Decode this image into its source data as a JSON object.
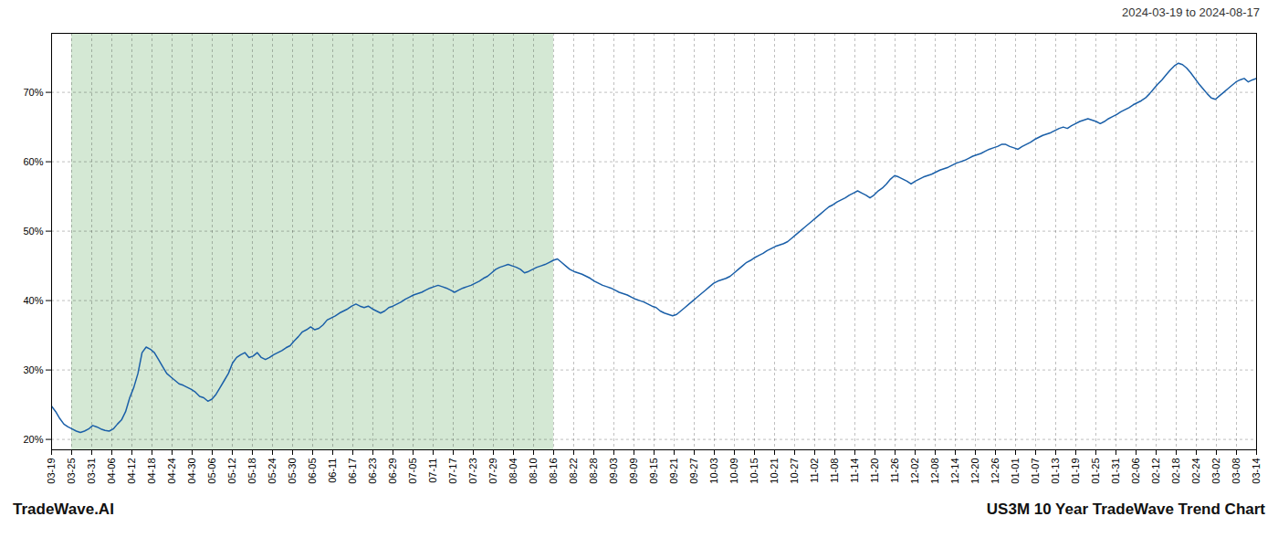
{
  "chart_data": {
    "type": "line",
    "title": "US3M 10 Year TradeWave Trend Chart",
    "subtitle": "2024-03-19 to 2024-08-17",
    "annotations": [
      "TradeWave.AI"
    ],
    "color": "#1a5fa8",
    "grid": true,
    "xlim": [
      0,
      293
    ],
    "xticks": [
      {
        "value": 0,
        "label": "03-19"
      },
      {
        "value": 4.8833,
        "label": "03-25"
      },
      {
        "value": 9.7667,
        "label": "03-31"
      },
      {
        "value": 14.65,
        "label": "04-06"
      },
      {
        "value": 19.5333,
        "label": "04-12"
      },
      {
        "value": 24.4167,
        "label": "04-18"
      },
      {
        "value": 29.3,
        "label": "04-24"
      },
      {
        "value": 34.1833,
        "label": "04-30"
      },
      {
        "value": 39.0667,
        "label": "05-06"
      },
      {
        "value": 43.95,
        "label": "05-12"
      },
      {
        "value": 48.8333,
        "label": "05-18"
      },
      {
        "value": 53.7167,
        "label": "05-24"
      },
      {
        "value": 58.6,
        "label": "05-30"
      },
      {
        "value": 63.4833,
        "label": "06-05"
      },
      {
        "value": 68.3667,
        "label": "06-11"
      },
      {
        "value": 73.25,
        "label": "06-17"
      },
      {
        "value": 78.1333,
        "label": "06-23"
      },
      {
        "value": 83.0167,
        "label": "06-29"
      },
      {
        "value": 87.9,
        "label": "07-05"
      },
      {
        "value": 92.7833,
        "label": "07-11"
      },
      {
        "value": 97.6667,
        "label": "07-17"
      },
      {
        "value": 102.55,
        "label": "07-23"
      },
      {
        "value": 107.4333,
        "label": "07-29"
      },
      {
        "value": 112.3167,
        "label": "08-04"
      },
      {
        "value": 117.2,
        "label": "08-10"
      },
      {
        "value": 122.0833,
        "label": "08-16"
      },
      {
        "value": 126.9667,
        "label": "08-22"
      },
      {
        "value": 131.85,
        "label": "08-28"
      },
      {
        "value": 136.7333,
        "label": "09-03"
      },
      {
        "value": 141.6167,
        "label": "09-09"
      },
      {
        "value": 146.5,
        "label": "09-15"
      },
      {
        "value": 151.3833,
        "label": "09-21"
      },
      {
        "value": 156.2667,
        "label": "09-27"
      },
      {
        "value": 161.15,
        "label": "10-03"
      },
      {
        "value": 166.0333,
        "label": "10-09"
      },
      {
        "value": 170.9167,
        "label": "10-15"
      },
      {
        "value": 175.8,
        "label": "10-21"
      },
      {
        "value": 180.6833,
        "label": "10-27"
      },
      {
        "value": 185.5667,
        "label": "11-02"
      },
      {
        "value": 190.45,
        "label": "11-08"
      },
      {
        "value": 195.3333,
        "label": "11-14"
      },
      {
        "value": 200.2167,
        "label": "11-20"
      },
      {
        "value": 205.1,
        "label": "11-26"
      },
      {
        "value": 209.9833,
        "label": "12-02"
      },
      {
        "value": 214.8667,
        "label": "12-08"
      },
      {
        "value": 219.75,
        "label": "12-14"
      },
      {
        "value": 224.6333,
        "label": "12-20"
      },
      {
        "value": 229.5167,
        "label": "12-26"
      },
      {
        "value": 234.4,
        "label": "01-01"
      },
      {
        "value": 239.2833,
        "label": "01-07"
      },
      {
        "value": 244.1667,
        "label": "01-13"
      },
      {
        "value": 249.05,
        "label": "01-19"
      },
      {
        "value": 253.9333,
        "label": "01-25"
      },
      {
        "value": 258.8167,
        "label": "01-31"
      },
      {
        "value": 263.7,
        "label": "02-06"
      },
      {
        "value": 268.5833,
        "label": "02-12"
      },
      {
        "value": 273.4667,
        "label": "02-18"
      },
      {
        "value": 278.35,
        "label": "02-24"
      },
      {
        "value": 283.2333,
        "label": "03-02"
      },
      {
        "value": 288.1167,
        "label": "03-08"
      },
      {
        "value": 293,
        "label": "03-14"
      }
    ],
    "ylim": [
      0.185,
      0.785
    ],
    "yticks": [
      {
        "value": 0.2,
        "label": "20%"
      },
      {
        "value": 0.3,
        "label": "30%"
      },
      {
        "value": 0.4,
        "label": "40%"
      },
      {
        "value": 0.5,
        "label": "50%"
      },
      {
        "value": 0.6,
        "label": "60%"
      },
      {
        "value": 0.7,
        "label": "70%"
      }
    ],
    "shaded_span": {
      "from": "03-25",
      "to": "08-16",
      "color": "#d4e8d4"
    },
    "values": [
      0.248,
      0.24,
      0.23,
      0.222,
      0.218,
      0.215,
      0.212,
      0.21,
      0.212,
      0.215,
      0.22,
      0.218,
      0.215,
      0.213,
      0.212,
      0.215,
      0.222,
      0.228,
      0.24,
      0.26,
      0.275,
      0.295,
      0.325,
      0.333,
      0.33,
      0.325,
      0.315,
      0.305,
      0.295,
      0.29,
      0.285,
      0.28,
      0.278,
      0.275,
      0.272,
      0.268,
      0.262,
      0.26,
      0.255,
      0.258,
      0.265,
      0.275,
      0.285,
      0.295,
      0.31,
      0.318,
      0.322,
      0.325,
      0.318,
      0.32,
      0.325,
      0.318,
      0.315,
      0.318,
      0.322,
      0.325,
      0.328,
      0.332,
      0.335,
      0.342,
      0.348,
      0.355,
      0.358,
      0.362,
      0.358,
      0.36,
      0.365,
      0.372,
      0.375,
      0.378,
      0.382,
      0.385,
      0.388,
      0.392,
      0.395,
      0.392,
      0.39,
      0.392,
      0.388,
      0.385,
      0.382,
      0.385,
      0.39,
      0.392,
      0.395,
      0.398,
      0.402,
      0.405,
      0.408,
      0.41,
      0.412,
      0.415,
      0.418,
      0.42,
      0.422,
      0.42,
      0.418,
      0.415,
      0.412,
      0.415,
      0.418,
      0.42,
      0.422,
      0.425,
      0.428,
      0.432,
      0.435,
      0.44,
      0.445,
      0.448,
      0.45,
      0.452,
      0.45,
      0.448,
      0.445,
      0.44,
      0.442,
      0.445,
      0.448,
      0.45,
      0.452,
      0.455,
      0.458,
      0.46,
      0.455,
      0.45,
      0.445,
      0.442,
      0.44,
      0.438,
      0.435,
      0.432,
      0.428,
      0.425,
      0.422,
      0.42,
      0.418,
      0.415,
      0.412,
      0.41,
      0.408,
      0.405,
      0.402,
      0.4,
      0.398,
      0.395,
      0.392,
      0.39,
      0.385,
      0.382,
      0.38,
      0.378,
      0.38,
      0.385,
      0.39,
      0.395,
      0.4,
      0.405,
      0.41,
      0.415,
      0.42,
      0.425,
      0.428,
      0.43,
      0.432,
      0.435,
      0.44,
      0.445,
      0.45,
      0.455,
      0.458,
      0.462,
      0.465,
      0.468,
      0.472,
      0.475,
      0.478,
      0.48,
      0.482,
      0.485,
      0.49,
      0.495,
      0.5,
      0.505,
      0.51,
      0.515,
      0.52,
      0.525,
      0.53,
      0.535,
      0.538,
      0.542,
      0.545,
      0.548,
      0.552,
      0.555,
      0.558,
      0.555,
      0.552,
      0.548,
      0.552,
      0.558,
      0.562,
      0.568,
      0.575,
      0.58,
      0.578,
      0.575,
      0.572,
      0.568,
      0.572,
      0.575,
      0.578,
      0.58,
      0.582,
      0.585,
      0.588,
      0.59,
      0.592,
      0.595,
      0.598,
      0.6,
      0.602,
      0.605,
      0.608,
      0.61,
      0.612,
      0.615,
      0.618,
      0.62,
      0.622,
      0.625,
      0.625,
      0.622,
      0.62,
      0.618,
      0.622,
      0.625,
      0.628,
      0.632,
      0.635,
      0.638,
      0.64,
      0.642,
      0.645,
      0.648,
      0.65,
      0.648,
      0.652,
      0.655,
      0.658,
      0.66,
      0.662,
      0.66,
      0.658,
      0.655,
      0.658,
      0.662,
      0.665,
      0.668,
      0.672,
      0.675,
      0.678,
      0.682,
      0.685,
      0.688,
      0.692,
      0.698,
      0.705,
      0.712,
      0.718,
      0.725,
      0.732,
      0.738,
      0.742,
      0.74,
      0.735,
      0.728,
      0.72,
      0.712,
      0.705,
      0.698,
      0.692,
      0.69,
      0.695,
      0.7,
      0.705,
      0.71,
      0.715,
      0.718,
      0.72,
      0.715,
      0.718,
      0.72
    ]
  }
}
